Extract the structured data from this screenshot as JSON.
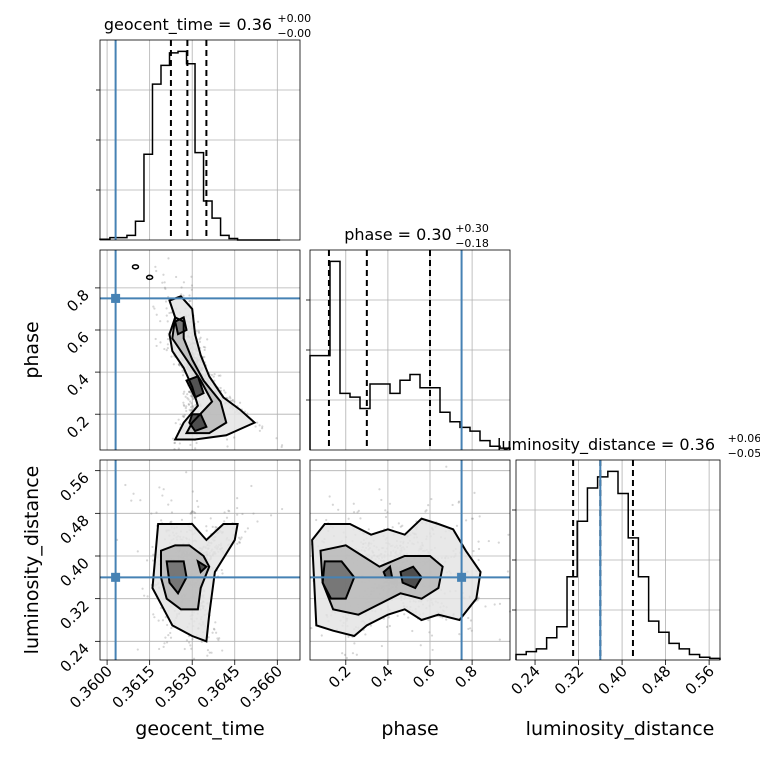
{
  "chart_data": {
    "type": "corner",
    "parameters": [
      "geocent_time",
      "phase",
      "luminosity_distance"
    ],
    "truths": {
      "geocent_time": 0.3603,
      "phase": 0.75,
      "luminosity_distance": 0.36
    },
    "titles": [
      {
        "label": "geocent_time = 0.36",
        "sup": "+0.00",
        "sub": "−0.00"
      },
      {
        "label": "phase = 0.30",
        "sup": "+0.30",
        "sub": "−0.18"
      },
      {
        "label": "luminosity_distance = 0.36",
        "sup": "+0.06",
        "sub": "−0.05"
      }
    ],
    "axis_labels": {
      "x": [
        "geocent_time",
        "phase",
        "luminosity_distance"
      ],
      "y": [
        "phase",
        "luminosity_distance"
      ]
    },
    "ranges": {
      "geocent_time": [
        0.35975,
        0.3668
      ],
      "phase": [
        0.03,
        0.98
      ],
      "luminosity_distance": [
        0.205,
        0.58
      ]
    },
    "ticks": {
      "geocent_time": [
        "0.3600",
        "0.3615",
        "0.3630",
        "0.3645",
        "0.3660"
      ],
      "phase": [
        "0.2",
        "0.4",
        "0.6",
        "0.8"
      ],
      "luminosity_distance": [
        "0.24",
        "0.32",
        "0.40",
        "0.48",
        "0.56"
      ]
    },
    "histograms": {
      "geocent_time": {
        "edges": [
          0.35975,
          0.3601,
          0.3604,
          0.3607,
          0.361,
          0.3613,
          0.3616,
          0.3619,
          0.3622,
          0.3625,
          0.3628,
          0.3631,
          0.3634,
          0.3637,
          0.364,
          0.3643,
          0.3646,
          0.3649,
          0.3652,
          0.3655,
          0.3658,
          0.3661
        ],
        "counts": [
          0.5,
          1.5,
          1.5,
          3,
          12,
          55,
          100,
          112,
          120,
          121,
          113,
          56,
          25,
          14,
          3,
          1,
          0,
          0,
          0,
          0,
          0
        ],
        "quantiles": [
          0.36225,
          0.36283,
          0.3635
        ]
      },
      "phase": {
        "edges": [
          0.03,
          0.0775,
          0.125,
          0.1725,
          0.22,
          0.2675,
          0.315,
          0.3625,
          0.41,
          0.4575,
          0.505,
          0.5525,
          0.6,
          0.6475,
          0.695,
          0.7425,
          0.79,
          0.8375,
          0.885,
          0.9325,
          0.98
        ],
        "counts": [
          0.5,
          0.5,
          1.0,
          0.3,
          0.28,
          0.22,
          0.35,
          0.35,
          0.3,
          0.37,
          0.4,
          0.33,
          0.33,
          0.2,
          0.15,
          0.12,
          0.1,
          0.05,
          0.02,
          0.01
        ],
        "quantiles": [
          0.12,
          0.3,
          0.6
        ]
      },
      "luminosity_distance": {
        "edges": [
          0.205,
          0.2238,
          0.2425,
          0.2613,
          0.28,
          0.2988,
          0.3175,
          0.3363,
          0.355,
          0.3738,
          0.3925,
          0.4113,
          0.43,
          0.4488,
          0.4675,
          0.4863,
          0.505,
          0.5238,
          0.5425,
          0.5613,
          0.58
        ],
        "counts": [
          1,
          1.5,
          2,
          4,
          6,
          15,
          25,
          31,
          33,
          34,
          30,
          22,
          15,
          7,
          5,
          3,
          2,
          1,
          0.5,
          0.3
        ],
        "quantiles": [
          0.31,
          0.36,
          0.42
        ]
      }
    },
    "density_2d": [
      {
        "x": "geocent_time",
        "y": "phase",
        "mode_points": [
          [
            0.361,
            0.9
          ],
          [
            0.3615,
            0.85
          ]
        ],
        "contours": [
          [
            [
              0.3622,
              0.74
            ],
            [
              0.3624,
              0.66
            ],
            [
              0.3622,
              0.58
            ],
            [
              0.3623,
              0.5
            ],
            [
              0.3627,
              0.42
            ],
            [
              0.363,
              0.33
            ],
            [
              0.3632,
              0.24
            ],
            [
              0.3627,
              0.16
            ],
            [
              0.3624,
              0.08
            ],
            [
              0.3631,
              0.08
            ],
            [
              0.3642,
              0.1
            ],
            [
              0.3652,
              0.16
            ],
            [
              0.3647,
              0.22
            ],
            [
              0.3641,
              0.28
            ],
            [
              0.3636,
              0.38
            ],
            [
              0.3633,
              0.48
            ],
            [
              0.3631,
              0.58
            ],
            [
              0.363,
              0.7
            ],
            [
              0.3626,
              0.76
            ]
          ],
          [
            [
              0.3624,
              0.66
            ],
            [
              0.3623,
              0.56
            ],
            [
              0.3628,
              0.46
            ],
            [
              0.3633,
              0.36
            ],
            [
              0.3637,
              0.26
            ],
            [
              0.363,
              0.16
            ],
            [
              0.3628,
              0.11
            ],
            [
              0.3636,
              0.11
            ],
            [
              0.3642,
              0.16
            ],
            [
              0.364,
              0.26
            ],
            [
              0.3634,
              0.36
            ],
            [
              0.363,
              0.46
            ],
            [
              0.3627,
              0.56
            ],
            [
              0.3627,
              0.64
            ]
          ],
          [
            [
              0.3624,
              0.64
            ],
            [
              0.3625,
              0.58
            ],
            [
              0.3628,
              0.6
            ],
            [
              0.3627,
              0.66
            ]
          ],
          [
            [
              0.3628,
              0.36
            ],
            [
              0.3631,
              0.28
            ],
            [
              0.3634,
              0.3
            ],
            [
              0.3632,
              0.38
            ]
          ],
          [
            [
              0.3629,
              0.16
            ],
            [
              0.3631,
              0.12
            ],
            [
              0.3635,
              0.14
            ],
            [
              0.3633,
              0.2
            ],
            [
              0.363,
              0.2
            ]
          ]
        ]
      },
      {
        "x": "geocent_time",
        "y": "luminosity_distance",
        "contours": [
          [
            [
              0.3618,
              0.46
            ],
            [
              0.3617,
              0.4
            ],
            [
              0.3616,
              0.34
            ],
            [
              0.362,
              0.3
            ],
            [
              0.3623,
              0.27
            ],
            [
              0.363,
              0.25
            ],
            [
              0.3635,
              0.24
            ],
            [
              0.3636,
              0.29
            ],
            [
              0.3638,
              0.37
            ],
            [
              0.3645,
              0.43
            ],
            [
              0.3646,
              0.46
            ],
            [
              0.3641,
              0.46
            ],
            [
              0.3635,
              0.43
            ],
            [
              0.363,
              0.46
            ],
            [
              0.3624,
              0.46
            ]
          ],
          [
            [
              0.3619,
              0.41
            ],
            [
              0.3619,
              0.36
            ],
            [
              0.3621,
              0.32
            ],
            [
              0.3626,
              0.3
            ],
            [
              0.3632,
              0.3
            ],
            [
              0.3633,
              0.34
            ],
            [
              0.3636,
              0.38
            ],
            [
              0.3634,
              0.4
            ],
            [
              0.3629,
              0.42
            ],
            [
              0.3624,
              0.42
            ]
          ],
          [
            [
              0.3621,
              0.39
            ],
            [
              0.3622,
              0.35
            ],
            [
              0.3625,
              0.33
            ],
            [
              0.3628,
              0.36
            ],
            [
              0.3627,
              0.39
            ]
          ],
          [
            [
              0.3632,
              0.39
            ],
            [
              0.3633,
              0.37
            ],
            [
              0.3635,
              0.38
            ]
          ]
        ]
      },
      {
        "x": "phase",
        "y": "luminosity_distance",
        "contours": [
          [
            [
              0.04,
              0.43
            ],
            [
              0.1,
              0.46
            ],
            [
              0.22,
              0.46
            ],
            [
              0.32,
              0.44
            ],
            [
              0.4,
              0.45
            ],
            [
              0.48,
              0.44
            ],
            [
              0.56,
              0.47
            ],
            [
              0.64,
              0.46
            ],
            [
              0.71,
              0.45
            ],
            [
              0.77,
              0.41
            ],
            [
              0.84,
              0.37
            ],
            [
              0.82,
              0.32
            ],
            [
              0.74,
              0.28
            ],
            [
              0.64,
              0.29
            ],
            [
              0.56,
              0.28
            ],
            [
              0.48,
              0.3
            ],
            [
              0.4,
              0.29
            ],
            [
              0.3,
              0.27
            ],
            [
              0.24,
              0.25
            ],
            [
              0.14,
              0.26
            ],
            [
              0.06,
              0.27
            ],
            [
              0.05,
              0.35
            ]
          ],
          [
            [
              0.08,
              0.41
            ],
            [
              0.2,
              0.42
            ],
            [
              0.28,
              0.4
            ],
            [
              0.36,
              0.38
            ],
            [
              0.48,
              0.4
            ],
            [
              0.6,
              0.4
            ],
            [
              0.66,
              0.38
            ],
            [
              0.64,
              0.34
            ],
            [
              0.56,
              0.32
            ],
            [
              0.46,
              0.33
            ],
            [
              0.36,
              0.31
            ],
            [
              0.26,
              0.29
            ],
            [
              0.14,
              0.3
            ],
            [
              0.09,
              0.35
            ]
          ],
          [
            [
              0.1,
              0.39
            ],
            [
              0.18,
              0.39
            ],
            [
              0.24,
              0.36
            ],
            [
              0.2,
              0.32
            ],
            [
              0.13,
              0.32
            ],
            [
              0.09,
              0.35
            ]
          ],
          [
            [
              0.46,
              0.37
            ],
            [
              0.52,
              0.38
            ],
            [
              0.56,
              0.36
            ],
            [
              0.53,
              0.34
            ],
            [
              0.47,
              0.35
            ]
          ],
          [
            [
              0.38,
              0.37
            ],
            [
              0.41,
              0.38
            ],
            [
              0.42,
              0.36
            ],
            [
              0.39,
              0.36
            ]
          ]
        ]
      }
    ]
  }
}
